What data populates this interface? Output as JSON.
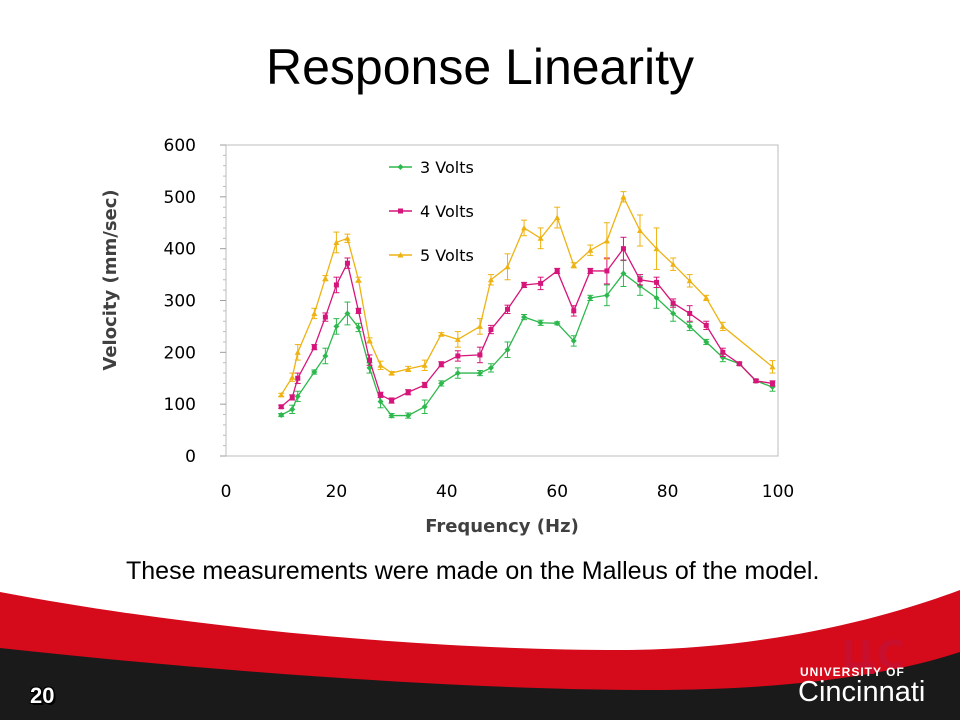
{
  "slide": {
    "title": "Response Linearity",
    "caption": "These measurements were made on the Malleus of the model.",
    "page_number": "20",
    "logo": {
      "univ_of": "UNIVERSITY OF",
      "name": "Cincinnati",
      "monogram": "UC"
    },
    "colors": {
      "footer_red": "#d50a1b",
      "footer_dark": "#1a1a1a"
    }
  },
  "chart_data": {
    "type": "line",
    "xlabel": "Frequency (Hz)",
    "ylabel": "Velocity (mm/sec)",
    "xlim": [
      0,
      100
    ],
    "ylim": [
      0,
      600
    ],
    "xticks": [
      0,
      20,
      40,
      60,
      80,
      100
    ],
    "yticks": [
      0,
      100,
      200,
      300,
      400,
      500,
      600
    ],
    "grid": false,
    "legend_position": "top-left inside plot",
    "error_bars": true,
    "x": [
      10,
      12,
      13,
      16,
      18,
      20,
      22,
      24,
      26,
      28,
      30,
      33,
      36,
      39,
      42,
      46,
      48,
      51,
      54,
      57,
      60,
      63,
      66,
      69,
      72,
      75,
      78,
      81,
      84,
      87,
      90,
      93,
      96,
      99
    ],
    "series": [
      {
        "name": "3 Volts",
        "color": "#2db84d",
        "marker": "diamond",
        "values": [
          79,
          90,
          115,
          162,
          193,
          250,
          275,
          248,
          170,
          105,
          78,
          78,
          95,
          140,
          160,
          160,
          170,
          205,
          268,
          257,
          256,
          222,
          305,
          310,
          352,
          328,
          305,
          275,
          250,
          220,
          190,
          178,
          145,
          133
        ],
        "errors": [
          3,
          8,
          10,
          4,
          15,
          15,
          22,
          8,
          10,
          12,
          4,
          5,
          13,
          5,
          10,
          5,
          8,
          15,
          5,
          5,
          3,
          10,
          5,
          20,
          25,
          18,
          20,
          15,
          8,
          5,
          8,
          3,
          3,
          8
        ]
      },
      {
        "name": "4 Volts",
        "color": "#d6157a",
        "marker": "square",
        "values": [
          95,
          113,
          150,
          210,
          268,
          330,
          372,
          280,
          185,
          118,
          107,
          123,
          137,
          177,
          193,
          195,
          244,
          283,
          330,
          333,
          357,
          280,
          357,
          357,
          400,
          340,
          335,
          295,
          275,
          252,
          200,
          178,
          145,
          140
        ],
        "errors": [
          3,
          5,
          10,
          5,
          8,
          15,
          10,
          5,
          10,
          5,
          5,
          5,
          5,
          5,
          10,
          15,
          8,
          8,
          5,
          12,
          5,
          10,
          5,
          25,
          22,
          10,
          10,
          8,
          15,
          8,
          8,
          3,
          3,
          5
        ]
      },
      {
        "name": "5 Volts",
        "color": "#eeb212",
        "marker": "triangle",
        "values": [
          118,
          152,
          200,
          275,
          343,
          412,
          420,
          340,
          223,
          175,
          160,
          168,
          175,
          235,
          225,
          250,
          340,
          365,
          440,
          420,
          460,
          368,
          397,
          415,
          500,
          435,
          400,
          370,
          338,
          305,
          250,
          null,
          null,
          172
        ],
        "errors": [
          3,
          8,
          15,
          10,
          5,
          20,
          8,
          5,
          5,
          8,
          3,
          5,
          10,
          3,
          15,
          15,
          10,
          25,
          15,
          20,
          20,
          5,
          10,
          35,
          10,
          30,
          40,
          12,
          12,
          5,
          8,
          0,
          0,
          12
        ]
      }
    ]
  }
}
